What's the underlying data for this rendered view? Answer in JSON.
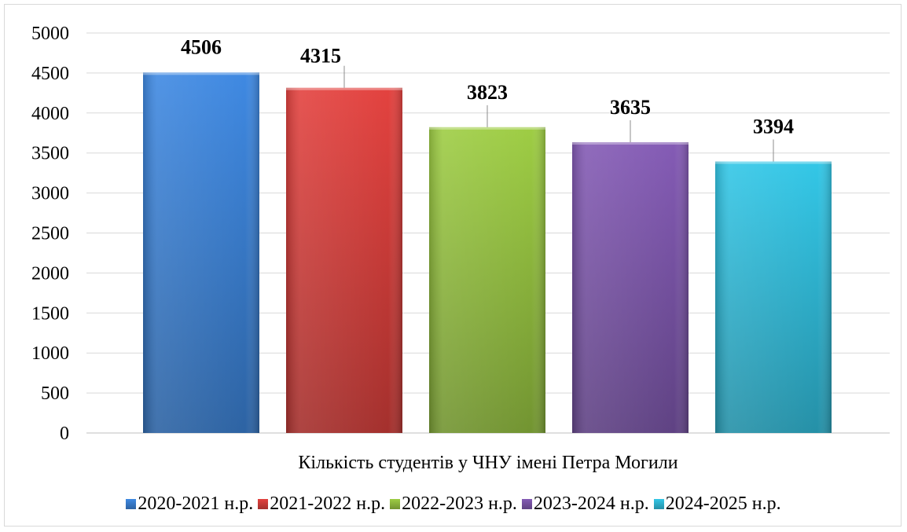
{
  "chart_data": {
    "type": "bar",
    "title": "",
    "xlabel": "",
    "ylabel": "",
    "categories": [
      "Кількість студентів у ЧНУ імені Петра Могили"
    ],
    "series": [
      {
        "name": "2020-2021 н.р.",
        "values": [
          4506
        ],
        "color": "#3a7fd1"
      },
      {
        "name": "2021-2022 н.р.",
        "values": [
          4315
        ],
        "color": "#d23d3a"
      },
      {
        "name": "2022-2023 н.р.",
        "values": [
          3823
        ],
        "color": "#92be3f"
      },
      {
        "name": "2023-2024 н.р.",
        "values": [
          3635
        ],
        "color": "#7a54a8"
      },
      {
        "name": "2024-2025 н.р.",
        "values": [
          3394
        ],
        "color": "#2fb8d6"
      }
    ],
    "ylim": [
      0,
      5000
    ],
    "yticks": [
      0,
      500,
      1000,
      1500,
      2000,
      2500,
      3000,
      3500,
      4000,
      4500,
      5000
    ],
    "grid": true,
    "legend_position": "bottom",
    "data_labels": true
  }
}
